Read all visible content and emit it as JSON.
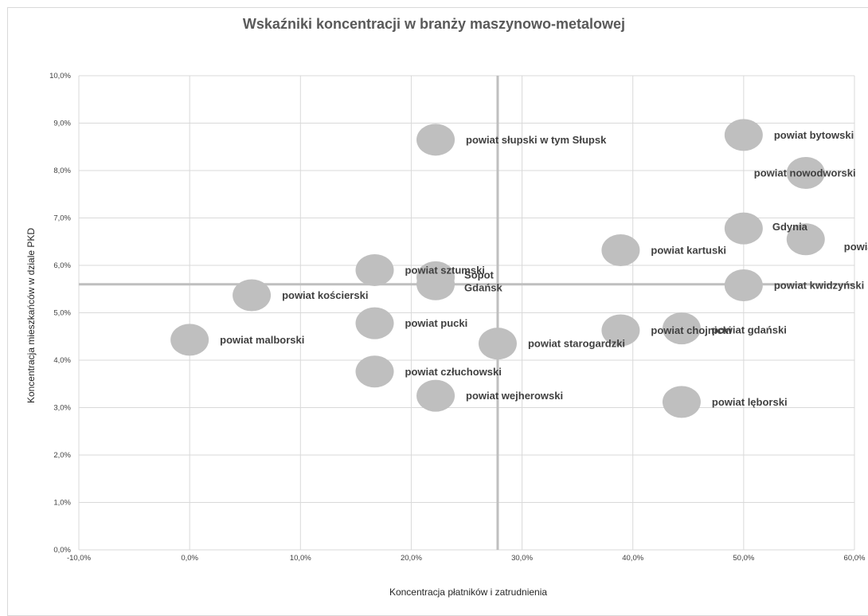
{
  "chart_data": {
    "type": "scatter",
    "title": "Wskaźniki koncentracji w branży  maszynowo-metalowej",
    "xlabel": "Koncentracja płatników  i zatrudnienia",
    "ylabel": "Koncentracja mieszkańców w dziale PKD",
    "xlim": [
      -0.1,
      0.6
    ],
    "ylim": [
      0.0,
      0.1
    ],
    "x_ticks": [
      "-10,0%",
      "0,0%",
      "10,0%",
      "20,0%",
      "30,0%",
      "40,0%",
      "50,0%",
      "60,0%"
    ],
    "y_ticks": [
      "0,0%",
      "1,0%",
      "2,0%",
      "3,0%",
      "4,0%",
      "5,0%",
      "6,0%",
      "7,0%",
      "8,0%",
      "9,0%",
      "10,0%"
    ],
    "grid": true,
    "reference_lines": {
      "x": 0.278,
      "y": 0.056
    },
    "points": [
      {
        "label": "powiat słupski w tym Słupsk",
        "x": 0.222,
        "y": 0.0865
      },
      {
        "label": "powiat bytowski",
        "x": 0.5,
        "y": 0.0875
      },
      {
        "label": "powiat nowodworski",
        "x": 0.556,
        "y": 0.0795
      },
      {
        "label": "Gdynia",
        "x": 0.5,
        "y": 0.0678
      },
      {
        "label": "powiat tczewski",
        "x": 0.556,
        "y": 0.0655
      },
      {
        "label": "powiat kartuski",
        "x": 0.389,
        "y": 0.0632
      },
      {
        "label": "powiat sztumski",
        "x": 0.167,
        "y": 0.059
      },
      {
        "label": "Sopot",
        "x": 0.222,
        "y": 0.0575
      },
      {
        "label": "Gdańsk",
        "x": 0.222,
        "y": 0.056
      },
      {
        "label": "powiat kwidzyński",
        "x": 0.5,
        "y": 0.0558
      },
      {
        "label": "powiat kościerski",
        "x": 0.056,
        "y": 0.0537
      },
      {
        "label": "powiat pucki",
        "x": 0.167,
        "y": 0.0478
      },
      {
        "label": "powiat chojnicki",
        "x": 0.389,
        "y": 0.0463
      },
      {
        "label": "powiat gdański",
        "x": 0.444,
        "y": 0.0467
      },
      {
        "label": "powiat malborski",
        "x": 0.0,
        "y": 0.0443
      },
      {
        "label": "powiat starogardzki",
        "x": 0.278,
        "y": 0.0435
      },
      {
        "label": "powiat człuchowski",
        "x": 0.167,
        "y": 0.0376
      },
      {
        "label": "powiat wejherowski",
        "x": 0.222,
        "y": 0.0325
      },
      {
        "label": "powiat lęborski",
        "x": 0.444,
        "y": 0.0312
      }
    ],
    "colors": {
      "marker": "#bfbfbf",
      "grid": "#d9d9d9",
      "reference_line": "#bfbfbf",
      "label": "#404040"
    }
  }
}
